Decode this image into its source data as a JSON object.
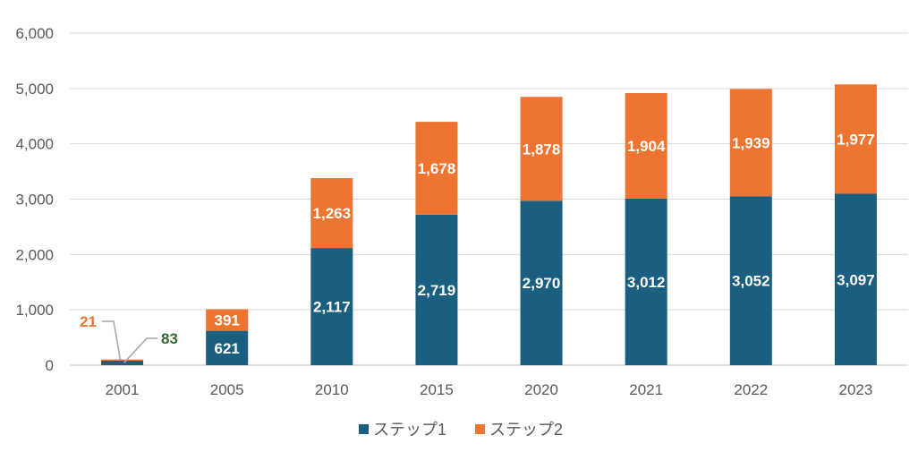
{
  "chart_data": {
    "type": "bar",
    "stacked": true,
    "title": "",
    "xlabel": "",
    "ylabel": "",
    "ylim": [
      0,
      6000
    ],
    "yticks": [
      0,
      1000,
      2000,
      3000,
      4000,
      5000,
      6000
    ],
    "ytick_labels": [
      "0",
      "1,000",
      "2,000",
      "3,000",
      "4,000",
      "5,000",
      "6,000"
    ],
    "grid": true,
    "legend_position": "bottom",
    "categories": [
      "2001",
      "2005",
      "2010",
      "2015",
      "2020",
      "2021",
      "2022",
      "2023"
    ],
    "series": [
      {
        "name": "ステップ1",
        "color": "#1a5f7f",
        "values": [
          83,
          621,
          2117,
          2719,
          2970,
          3012,
          3052,
          3097
        ],
        "labels": [
          "83",
          "621",
          "2,117",
          "2,719",
          "2,970",
          "3,012",
          "3,052",
          "3,097"
        ],
        "label_color_outside": "#2e6b2e"
      },
      {
        "name": "ステップ2",
        "color": "#ed7431",
        "values": [
          21,
          391,
          1263,
          1678,
          1878,
          1904,
          1939,
          1977
        ],
        "labels": [
          "21",
          "391",
          "1,263",
          "1,678",
          "1,878",
          "1,904",
          "1,939",
          "1,977"
        ],
        "label_color_outside": "#ed7431"
      }
    ]
  }
}
